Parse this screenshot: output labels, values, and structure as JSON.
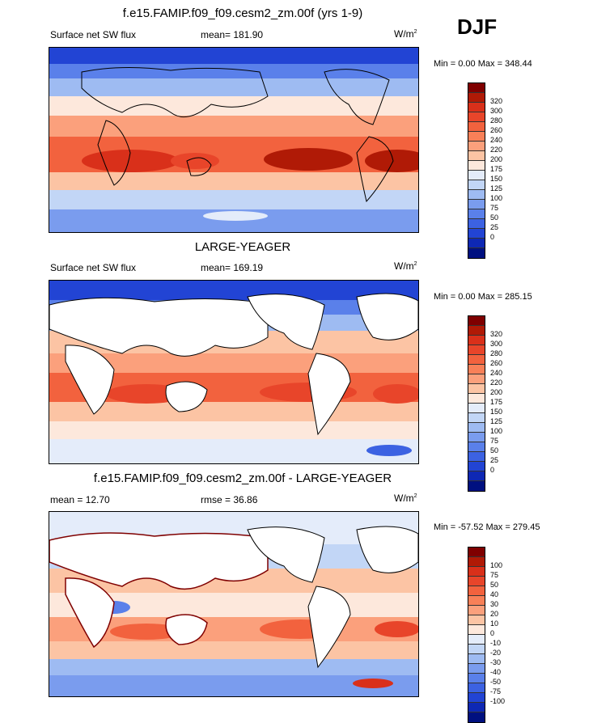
{
  "season": "DJF",
  "panels": [
    {
      "title": "f.e15.FAMIP.f09_f09.cesm2_zm.00f (yrs 1-9)",
      "left_label": "Surface net SW flux",
      "center_label": "mean= 181.90",
      "units_base": "W/m",
      "units_exp": "2",
      "minmax": "Min =   0.00 Max = 348.44",
      "colorbar": {
        "colors": [
          "#7f0000",
          "#b01a06",
          "#d9301a",
          "#e8452a",
          "#f2623e",
          "#f88058",
          "#fba07c",
          "#fcc4a4",
          "#fde8dc",
          "#e4ecfa",
          "#c2d6f6",
          "#9ebbf2",
          "#7a9cee",
          "#5a80ea",
          "#3c62e2",
          "#2244d4",
          "#0e28b4",
          "#001080"
        ],
        "labels": [
          "320",
          "300",
          "280",
          "260",
          "240",
          "220",
          "200",
          "175",
          "150",
          "125",
          "100",
          "75",
          "50",
          "25",
          "0"
        ]
      }
    },
    {
      "title": "LARGE-YEAGER",
      "left_label": "Surface net SW flux",
      "center_label": "mean= 169.19",
      "units_base": "W/m",
      "units_exp": "2",
      "minmax": "Min =   0.00 Max = 285.15",
      "colorbar": {
        "colors": [
          "#7f0000",
          "#b01a06",
          "#d9301a",
          "#e8452a",
          "#f2623e",
          "#f88058",
          "#fba07c",
          "#fcc4a4",
          "#fde8dc",
          "#e4ecfa",
          "#c2d6f6",
          "#9ebbf2",
          "#7a9cee",
          "#5a80ea",
          "#3c62e2",
          "#2244d4",
          "#0e28b4",
          "#001080"
        ],
        "labels": [
          "320",
          "300",
          "280",
          "260",
          "240",
          "220",
          "200",
          "175",
          "150",
          "125",
          "100",
          "75",
          "50",
          "25",
          "0"
        ]
      }
    },
    {
      "title": "f.e15.FAMIP.f09_f09.cesm2_zm.00f - LARGE-YEAGER",
      "left_label": "mean =  12.70",
      "center_label": "rmse =  36.86",
      "units_base": "W/m",
      "units_exp": "2",
      "minmax": "Min = -57.52 Max = 279.45",
      "colorbar": {
        "colors": [
          "#7f0000",
          "#b01a06",
          "#d9301a",
          "#e8452a",
          "#f2623e",
          "#f88058",
          "#fba07c",
          "#fcc4a4",
          "#fde8dc",
          "#e4ecfa",
          "#c2d6f6",
          "#9ebbf2",
          "#7a9cee",
          "#5a80ea",
          "#3c62e2",
          "#2244d4",
          "#0e28b4",
          "#001080"
        ],
        "labels": [
          "100",
          "75",
          "50",
          "40",
          "30",
          "20",
          "10",
          "0",
          "-10",
          "-20",
          "-30",
          "-40",
          "-50",
          "-75",
          "-100"
        ]
      }
    }
  ],
  "chart_data": {
    "type": "heatmap",
    "title": "Surface net SW flux DJF",
    "maps": [
      {
        "name": "f.e15.FAMIP.f09_f09.cesm2_zm.00f (yrs 1-9)",
        "mean": 181.9,
        "min": 0.0,
        "max": 348.44,
        "units": "W/m2"
      },
      {
        "name": "LARGE-YEAGER",
        "mean": 169.19,
        "min": 0.0,
        "max": 285.15,
        "units": "W/m2"
      },
      {
        "name": "f.e15.FAMIP.f09_f09.cesm2_zm.00f - LARGE-YEAGER",
        "mean": 12.7,
        "rmse": 36.86,
        "min": -57.52,
        "max": 279.45,
        "units": "W/m2"
      }
    ]
  }
}
